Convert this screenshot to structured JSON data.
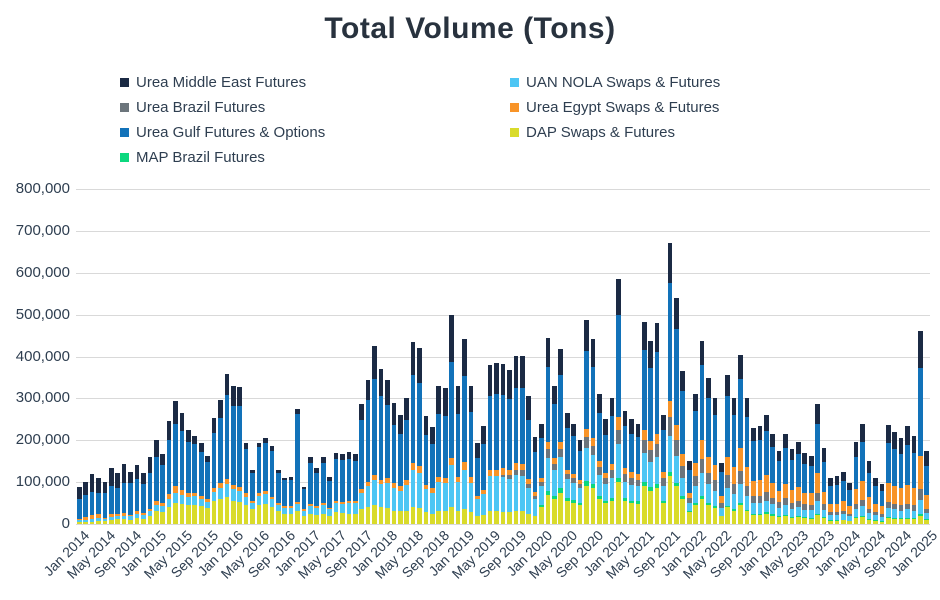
{
  "chart_data": {
    "type": "stacked-bar",
    "title": "Total Volume (Tons)",
    "xlabel": "",
    "ylabel": "",
    "ylim": [
      0,
      800000
    ],
    "y_tick_step": 100000,
    "y_tick_labels": [
      "0",
      "100,000",
      "200,000",
      "300,000",
      "400,000",
      "500,000",
      "600,000",
      "700,000",
      "800,000"
    ],
    "grid": "horizontal",
    "legend_position": "top-two-columns",
    "n_months": 133,
    "x_range": "Jan 2014 - Jan 2025",
    "x_tick_every": 4,
    "x_tick_labels": [
      "Jan 2014",
      "May 2014",
      "Sep 2014",
      "Jan 2015",
      "May 2015",
      "Sep 2015",
      "Jan 2016",
      "May 2016",
      "Sep 2016",
      "Jan 2017",
      "May 2017",
      "Sep 2017",
      "Jan 2018",
      "May 2018",
      "Sep 2018",
      "Jan 2019",
      "May 2019",
      "Sep 2019",
      "Jan 2020",
      "May 2020",
      "Sep 2020",
      "Jan 2021",
      "May 2021",
      "Sep 2021",
      "Jan 2022",
      "May 2022",
      "Sep 2022",
      "Jan 2023",
      "May 2023",
      "Sep 2023",
      "Jan 2024",
      "May 2024",
      "Sep 2024",
      "Jan 2025"
    ],
    "legend": [
      "Urea Middle East Futures",
      "UAN NOLA Swaps & Futures",
      "Urea Brazil Futures",
      "Urea Egypt Swaps & Futures",
      "Urea Gulf Futures & Options",
      "DAP Swaps & Futures",
      "MAP Brazil Futures"
    ],
    "series": [
      {
        "name": "DAP Swaps & Futures",
        "color": "#d9db2b",
        "values": [
          4000,
          5000,
          6000,
          8000,
          7000,
          10000,
          12000,
          12000,
          10000,
          14000,
          12000,
          18000,
          30000,
          28000,
          40000,
          50000,
          48000,
          45000,
          45000,
          42000,
          38000,
          55000,
          60000,
          65000,
          55000,
          52000,
          45000,
          35000,
          45000,
          48000,
          40000,
          30000,
          25000,
          24000,
          30000,
          20000,
          25000,
          22000,
          25000,
          20000,
          28000,
          26000,
          25000,
          25000,
          35000,
          40000,
          45000,
          40000,
          38000,
          32000,
          30000,
          32000,
          40000,
          38000,
          28000,
          25000,
          30000,
          30000,
          40000,
          30000,
          35000,
          28000,
          20000,
          22000,
          30000,
          30000,
          28000,
          28000,
          30000,
          30000,
          24000,
          18000,
          40000,
          70000,
          60000,
          75000,
          55000,
          50000,
          45000,
          90000,
          85000,
          60000,
          50000,
          55000,
          100000,
          55000,
          50000,
          48000,
          90000,
          80000,
          85000,
          50000,
          115000,
          90000,
          60000,
          28000,
          45000,
          60000,
          45000,
          38000,
          18000,
          40000,
          32000,
          45000,
          30000,
          22000,
          22000,
          25000,
          20000,
          16000,
          18000,
          15000,
          16000,
          14000,
          13000,
          22000,
          14000,
          8000,
          8000,
          9000,
          7000,
          14000,
          16000,
          10000,
          8000,
          6000,
          14000,
          13000,
          12000,
          13000,
          12000,
          20000,
          10000
        ]
      },
      {
        "name": "MAP Brazil Futures",
        "color": "#0cd87e",
        "values": [
          0,
          0,
          0,
          0,
          0,
          0,
          0,
          0,
          0,
          0,
          0,
          0,
          0,
          0,
          0,
          0,
          0,
          0,
          0,
          0,
          0,
          0,
          0,
          0,
          0,
          0,
          0,
          0,
          0,
          0,
          0,
          0,
          0,
          0,
          0,
          0,
          0,
          0,
          0,
          0,
          0,
          0,
          0,
          0,
          0,
          0,
          0,
          0,
          0,
          0,
          0,
          0,
          0,
          0,
          0,
          0,
          0,
          0,
          0,
          0,
          0,
          0,
          0,
          0,
          0,
          0,
          0,
          0,
          0,
          0,
          0,
          0,
          5000,
          8000,
          8000,
          10000,
          8000,
          8000,
          6000,
          12000,
          10000,
          8000,
          6000,
          8000,
          10000,
          6000,
          6000,
          6000,
          10000,
          8000,
          10000,
          6000,
          10000,
          8000,
          6000,
          3000,
          5000,
          6000,
          5000,
          4000,
          2000,
          4000,
          4000,
          5000,
          4000,
          3000,
          3000,
          3000,
          3000,
          2000,
          3000,
          2000,
          3000,
          2000,
          2000,
          3000,
          2000,
          1000,
          1000,
          1000,
          1000,
          2000,
          2000,
          2000,
          1000,
          1000,
          2000,
          2000,
          2000,
          2000,
          2000,
          3000,
          1000
        ]
      },
      {
        "name": "UAN NOLA Swaps & Futures",
        "color": "#4dc6f4",
        "values": [
          6000,
          4000,
          5000,
          6000,
          5000,
          6000,
          8000,
          8000,
          8000,
          10000,
          10000,
          12000,
          15000,
          14000,
          20000,
          25000,
          22000,
          20000,
          22000,
          18000,
          15000,
          22000,
          25000,
          30000,
          28000,
          26000,
          20000,
          16000,
          22000,
          24000,
          20000,
          16000,
          14000,
          14000,
          18000,
          12000,
          18000,
          16000,
          20000,
          15000,
          22000,
          22000,
          25000,
          25000,
          40000,
          50000,
          60000,
          55000,
          60000,
          55000,
          50000,
          60000,
          90000,
          85000,
          55000,
          50000,
          70000,
          68000,
          100000,
          70000,
          95000,
          70000,
          40000,
          50000,
          85000,
          85000,
          85000,
          80000,
          88000,
          85000,
          62000,
          42000,
          45000,
          80000,
          60000,
          75000,
          45000,
          40000,
          35000,
          80000,
          70000,
          50000,
          40000,
          48000,
          80000,
          40000,
          38000,
          36000,
          70000,
          60000,
          65000,
          36000,
          85000,
          65000,
          45000,
          20000,
          40000,
          55000,
          45000,
          38000,
          18000,
          42000,
          35000,
          45000,
          32000,
          25000,
          25000,
          28000,
          24000,
          20000,
          24000,
          20000,
          22000,
          18000,
          18000,
          30000,
          18000,
          12000,
          12000,
          13000,
          10000,
          20000,
          24000,
          15000,
          12000,
          10000,
          22000,
          20000,
          18000,
          20000,
          18000,
          35000,
          15000
        ]
      },
      {
        "name": "Urea Brazil Futures",
        "color": "#6c757c",
        "values": [
          0,
          0,
          0,
          0,
          0,
          0,
          0,
          0,
          0,
          0,
          0,
          0,
          0,
          0,
          0,
          0,
          0,
          0,
          0,
          0,
          0,
          0,
          0,
          0,
          0,
          0,
          0,
          0,
          0,
          0,
          0,
          0,
          0,
          0,
          0,
          0,
          0,
          0,
          0,
          0,
          0,
          0,
          0,
          0,
          0,
          0,
          0,
          0,
          0,
          0,
          0,
          0,
          0,
          0,
          0,
          0,
          0,
          0,
          0,
          0,
          0,
          0,
          0,
          0,
          0,
          0,
          5000,
          8000,
          12000,
          14000,
          10000,
          8000,
          10000,
          20000,
          15000,
          20000,
          12000,
          12000,
          10000,
          25000,
          22000,
          18000,
          15000,
          18000,
          35000,
          18000,
          16000,
          15000,
          30000,
          28000,
          30000,
          18000,
          45000,
          38000,
          28000,
          12000,
          25000,
          35000,
          28000,
          25000,
          12000,
          30000,
          25000,
          32000,
          25000,
          18000,
          18000,
          20000,
          16000,
          14000,
          16000,
          14000,
          15000,
          13000,
          12000,
          20000,
          13000,
          8000,
          8000,
          9000,
          7000,
          13000,
          16000,
          10000,
          8000,
          7000,
          15000,
          14000,
          13000,
          14000,
          13000,
          25000,
          11000
        ]
      },
      {
        "name": "Urea Egypt Swaps & Futures",
        "color": "#f89428",
        "values": [
          2000,
          8000,
          10000,
          9000,
          3000,
          8000,
          5000,
          6000,
          4000,
          6000,
          4000,
          6000,
          10000,
          8000,
          12000,
          15000,
          12000,
          10000,
          8000,
          8000,
          6000,
          10000,
          12000,
          12000,
          10000,
          10000,
          8000,
          5000,
          6000,
          6000,
          5000,
          4000,
          4000,
          4000,
          5000,
          3000,
          5000,
          4000,
          5000,
          4000,
          5000,
          5000,
          5000,
          6000,
          8000,
          10000,
          12000,
          10000,
          12000,
          10000,
          10000,
          12000,
          15000,
          15000,
          10000,
          10000,
          12000,
          12000,
          18000,
          12000,
          18000,
          14000,
          8000,
          10000,
          15000,
          15000,
          15000,
          14000,
          15000,
          15000,
          12000,
          8000,
          10000,
          18000,
          14000,
          15000,
          10000,
          10000,
          8000,
          20000,
          18000,
          14000,
          12000,
          14000,
          30000,
          15000,
          14000,
          14000,
          25000,
          22000,
          25000,
          15000,
          40000,
          35000,
          28000,
          12000,
          30000,
          45000,
          38000,
          35000,
          18000,
          45000,
          40000,
          55000,
          45000,
          35000,
          38000,
          40000,
          35000,
          28000,
          35000,
          30000,
          32000,
          28000,
          28000,
          48000,
          30000,
          20000,
          20000,
          22000,
          18000,
          35000,
          45000,
          28000,
          20000,
          18000,
          45000,
          42000,
          40000,
          45000,
          40000,
          80000,
          32000
        ]
      },
      {
        "name": "Urea Gulf Futures & Options",
        "color": "#1272b9",
        "values": [
          48000,
          53000,
          55000,
          52000,
          60000,
          66000,
          62000,
          72000,
          75000,
          78000,
          70000,
          86000,
          105000,
          90000,
          128000,
          150000,
          140000,
          120000,
          115000,
          105000,
          88000,
          130000,
          155000,
          200000,
          190000,
          195000,
          105000,
          65000,
          110000,
          115000,
          110000,
          72000,
          62000,
          64000,
          210000,
          48000,
          98000,
          80000,
          95000,
          63000,
          100000,
          100000,
          100000,
          95000,
          165000,
          195000,
          230000,
          200000,
          175000,
          140000,
          125000,
          145000,
          210000,
          200000,
          120000,
          105000,
          150000,
          148000,
          230000,
          150000,
          205000,
          155000,
          90000,
          110000,
          175000,
          180000,
          175000,
          168000,
          180000,
          180000,
          140000,
          95000,
          95000,
          180000,
          130000,
          160000,
          100000,
          90000,
          70000,
          185000,
          170000,
          115000,
          90000,
          115000,
          245000,
          100000,
          92000,
          90000,
          190000,
          175000,
          195000,
          100000,
          280000,
          230000,
          150000,
          55000,
          125000,
          180000,
          140000,
          120000,
          57000,
          145000,
          125000,
          165000,
          120000,
          95000,
          95000,
          105000,
          85000,
          70000,
          85000,
          72000,
          80000,
          68000,
          65000,
          115000,
          72000,
          42000,
          45000,
          48000,
          38000,
          75000,
          92000,
          58000,
          42000,
          36000,
          95000,
          88000,
          82000,
          95000,
          85000,
          210000,
          70000
        ]
      },
      {
        "name": "Urea Middle East Futures",
        "color": "#1b2a44",
        "values": [
          28000,
          30000,
          44000,
          35000,
          25000,
          45000,
          35000,
          45000,
          28000,
          32000,
          26000,
          38000,
          40000,
          28000,
          46000,
          55000,
          43000,
          30000,
          20000,
          20000,
          16000,
          37000,
          43000,
          51000,
          47000,
          45000,
          15000,
          8000,
          11000,
          12000,
          11000,
          8000,
          6000,
          6000,
          11000,
          5000,
          13000,
          11000,
          15000,
          10000,
          15000,
          15000,
          16000,
          17000,
          39000,
          50000,
          78000,
          65000,
          60000,
          53000,
          45000,
          51000,
          80000,
          82000,
          45000,
          42000,
          68000,
          67000,
          112000,
          68000,
          90000,
          63000,
          35000,
          43000,
          75000,
          75000,
          75000,
          70000,
          77000,
          78000,
          57000,
          37000,
          35000,
          69000,
          43000,
          63000,
          35000,
          30000,
          26000,
          75000,
          67000,
          45000,
          37000,
          42000,
          85000,
          36000,
          34000,
          31000,
          68000,
          64000,
          70000,
          35000,
          95000,
          74000,
          49000,
          20000,
          40000,
          56000,
          47000,
          40000,
          20000,
          49000,
          39000,
          58000,
          44000,
          32000,
          34000,
          39000,
          32000,
          25000,
          34000,
          27000,
          29000,
          26000,
          25000,
          48000,
          32000,
          19000,
          20000,
          22000,
          17000,
          37000,
          45000,
          27000,
          19000,
          17000,
          44000,
          41000,
          38000,
          46000,
          40000,
          88000,
          36000
        ]
      }
    ]
  }
}
